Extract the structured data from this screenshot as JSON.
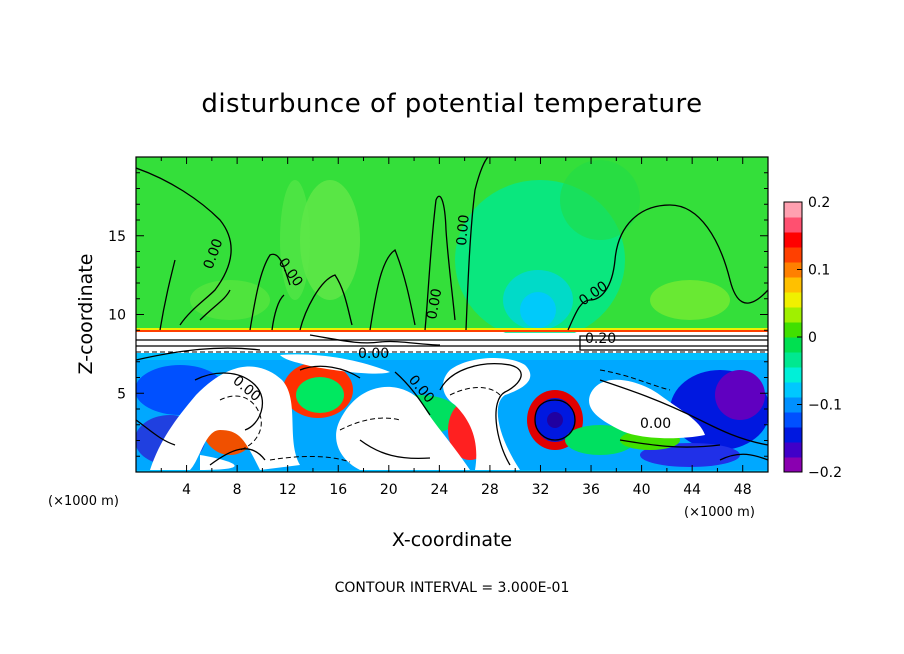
{
  "chart_data": {
    "type": "heatmap",
    "title": "disturbunce of potential temperature",
    "xlabel": "X-coordinate",
    "ylabel": "Z-coordinate",
    "x_unit": "(×1000 m)",
    "z_unit": "(×1000 m)",
    "xlim": [
      0,
      50
    ],
    "zlim": [
      0,
      20
    ],
    "x_ticks": [
      4,
      8,
      12,
      16,
      20,
      24,
      28,
      32,
      36,
      40,
      44,
      48
    ],
    "z_ticks": [
      5,
      10,
      15
    ],
    "x_tick_labels": [
      "4",
      "8",
      "12",
      "16",
      "20",
      "24",
      "28",
      "32",
      "36",
      "40",
      "44",
      "48"
    ],
    "z_tick_labels": [
      "5",
      "10",
      "15"
    ],
    "colorbar": {
      "min": -0.2,
      "max": 0.2,
      "ticks": [
        0.2,
        0.1,
        0,
        -0.1,
        -0.2
      ],
      "tick_labels": [
        "0.2",
        "0.1",
        "0",
        "−0.1",
        "−0.2"
      ],
      "colors": [
        "#8a00b0",
        "#4000c8",
        "#0018e0",
        "#0050ff",
        "#0090ff",
        "#00c8ff",
        "#00f0d8",
        "#00e890",
        "#00e050",
        "#40e000",
        "#a0f000",
        "#f0f000",
        "#ffc000",
        "#ff8000",
        "#ff4000",
        "#ff0000",
        "#ff5070",
        "#ffa0b0"
      ]
    },
    "contour_labels": [
      "0.00",
      "0.00",
      "0.00",
      "0.00",
      "0.00",
      "0.00",
      "0.00",
      "0.00",
      "0.00",
      "0.20"
    ],
    "contour_interval_text": "CONTOUR INTERVAL = 3.000E-01"
  }
}
